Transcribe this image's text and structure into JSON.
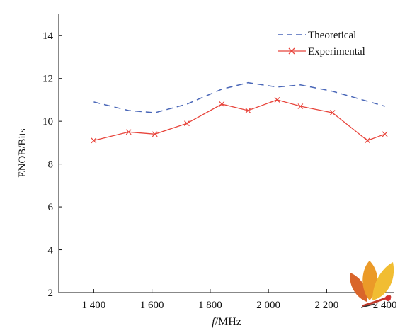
{
  "chart_data": {
    "type": "line",
    "title": "",
    "xlabel_italic": "f",
    "xlabel_rest": "/MHz",
    "ylabel": "ENOB/Bits",
    "xlim": [
      1280,
      2430
    ],
    "ylim": [
      2,
      15
    ],
    "xticks": [
      1400,
      1600,
      1800,
      2000,
      2200,
      2400
    ],
    "xtick_labels": [
      "1 400",
      "1 600",
      "1 800",
      "2 000",
      "2 200",
      "2 400"
    ],
    "yticks": [
      2,
      4,
      6,
      8,
      10,
      12,
      14
    ],
    "ytick_labels": [
      "2",
      "4",
      "6",
      "8",
      "10",
      "12",
      "14"
    ],
    "grid": false,
    "legend_position": "top-right",
    "series": [
      {
        "name": "Theoretical",
        "style": "dashed",
        "color": "#4a67b8",
        "marker": "none",
        "x": [
          1400,
          1520,
          1610,
          1720,
          1840,
          1930,
          2030,
          2110,
          2220,
          2400
        ],
        "y": [
          10.9,
          10.5,
          10.4,
          10.8,
          11.5,
          11.8,
          11.6,
          11.7,
          11.4,
          10.7
        ]
      },
      {
        "name": "Experimental",
        "style": "solid",
        "color": "#e8453c",
        "marker": "x",
        "x": [
          1400,
          1520,
          1610,
          1720,
          1840,
          1930,
          2030,
          2110,
          2220,
          2340,
          2400
        ],
        "y": [
          9.1,
          9.5,
          9.4,
          9.9,
          10.8,
          10.5,
          11.0,
          10.7,
          10.4,
          9.1,
          9.4
        ]
      }
    ]
  }
}
